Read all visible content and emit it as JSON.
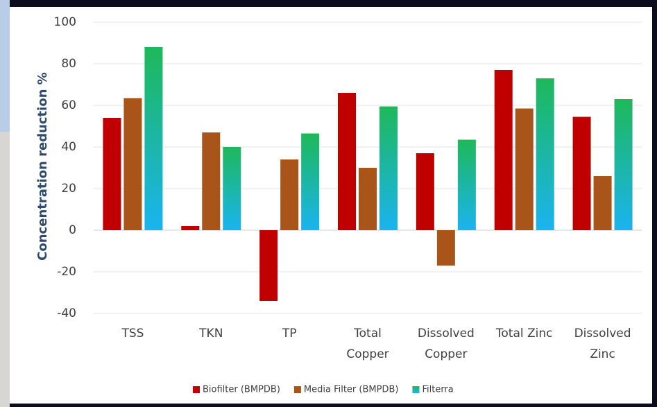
{
  "chart_data": {
    "type": "bar",
    "y_label": "Concentration reduction %",
    "categories": [
      "TSS",
      "TKN",
      "TP",
      "Total Copper",
      "Dissolved Copper",
      "Total Zinc",
      "Dissolved Zinc"
    ],
    "series": [
      {
        "name": "Biofilter (BMPDB)",
        "color": "#c00000",
        "values": [
          54,
          2,
          -34,
          66,
          37,
          77,
          54.5
        ]
      },
      {
        "name": "Media Filter (BMPDB)",
        "color": "#a9551a",
        "values": [
          63.5,
          47,
          34,
          30,
          -17,
          58.5,
          26
        ]
      },
      {
        "name": "Filterra",
        "color": "#1eb85a",
        "color_end": "#1ab4f0",
        "values": [
          88,
          40,
          46.5,
          59.5,
          43.5,
          73,
          63
        ]
      }
    ],
    "ylim": [
      -40,
      100
    ],
    "yticks": [
      -40,
      -20,
      0,
      20,
      40,
      60,
      80,
      100
    ],
    "grid": true,
    "legend": "bottom"
  }
}
